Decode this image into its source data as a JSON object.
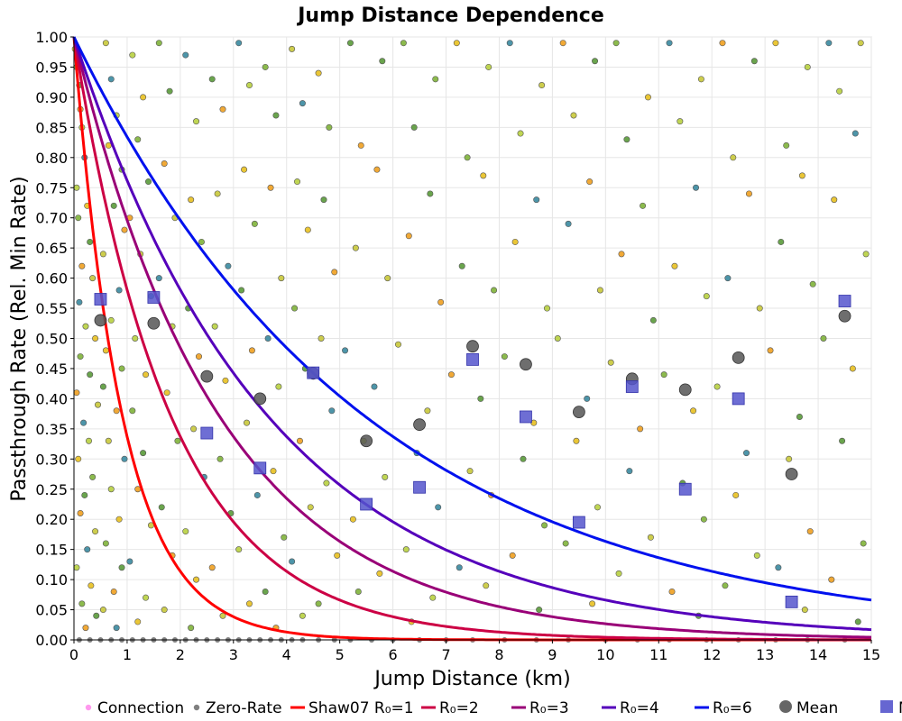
{
  "chart_data": {
    "type": "scatter",
    "title": "Jump Distance Dependence",
    "xlabel": "Jump Distance (km)",
    "ylabel": "Passthrough Rate (Rel. Min Rate)",
    "xlim": [
      0,
      15
    ],
    "ylim": [
      0,
      1
    ],
    "x_ticks": [
      "0",
      "1",
      "2",
      "3",
      "4",
      "5",
      "6",
      "7",
      "8",
      "9",
      "10",
      "11",
      "12",
      "13",
      "14",
      "15"
    ],
    "y_ticks": [
      "0.00",
      "0.05",
      "0.10",
      "0.15",
      "0.20",
      "0.25",
      "0.30",
      "0.35",
      "0.40",
      "0.45",
      "0.50",
      "0.55",
      "0.60",
      "0.65",
      "0.70",
      "0.75",
      "0.80",
      "0.85",
      "0.90",
      "0.95",
      "1.00"
    ],
    "grid": true,
    "legend": {
      "position": "bottom",
      "entries": [
        {
          "label": "Connection",
          "marker": "dot",
          "color": "#ff99ee"
        },
        {
          "label": "Zero-Rate",
          "marker": "dot",
          "color": "#808080"
        },
        {
          "label": "Shaw07 R₀=1",
          "marker": "line",
          "color": "#ff0000"
        },
        {
          "label": "R₀=2",
          "marker": "line",
          "color": "#cc0044"
        },
        {
          "label": "R₀=3",
          "marker": "line",
          "color": "#990077"
        },
        {
          "label": "R₀=4",
          "marker": "line",
          "color": "#5500bb"
        },
        {
          "label": "R₀=6",
          "marker": "line",
          "color": "#0011ee"
        },
        {
          "label": "Mean",
          "marker": "circle",
          "color": "#555555"
        },
        {
          "label": "Median",
          "marker": "square",
          "color": "#5555cc"
        }
      ]
    },
    "curves": [
      {
        "name": "Shaw07 R₀=1",
        "R0": 1,
        "color": "#ff0000"
      },
      {
        "name": "R₀=2",
        "R0": 2,
        "color": "#cc0044"
      },
      {
        "name": "R₀=3",
        "R0": 3,
        "color": "#990077"
      },
      {
        "name": "R₀=4",
        "R0": 4,
        "color": "#5500bb"
      },
      {
        "name": "R₀=6",
        "R0": 6,
        "color": "#0011ee"
      }
    ],
    "mean": {
      "x": [
        0.5,
        1.5,
        2.5,
        3.5,
        4.5,
        5.5,
        6.5,
        7.5,
        8.5,
        9.5,
        10.5,
        11.5,
        12.5,
        13.5,
        14.5
      ],
      "y": [
        0.53,
        0.525,
        0.437,
        0.4,
        0.442,
        0.33,
        0.357,
        0.487,
        0.457,
        0.378,
        0.433,
        0.415,
        0.468,
        0.275,
        0.537
      ]
    },
    "median": {
      "x": [
        0.5,
        1.5,
        2.5,
        3.5,
        4.5,
        5.5,
        6.5,
        7.5,
        8.5,
        9.5,
        10.5,
        11.5,
        12.5,
        13.5,
        14.5
      ],
      "y": [
        0.565,
        0.568,
        0.343,
        0.285,
        0.443,
        0.225,
        0.253,
        0.465,
        0.37,
        0.195,
        0.42,
        0.25,
        0.4,
        0.063,
        0.562
      ]
    },
    "connections_sample": [
      [
        0.02,
        0.98
      ],
      [
        0.05,
        0.95
      ],
      [
        0.1,
        0.92
      ],
      [
        0.12,
        0.88
      ],
      [
        0.15,
        0.85
      ],
      [
        0.2,
        0.8
      ],
      [
        0.05,
        0.75
      ],
      [
        0.25,
        0.72
      ],
      [
        0.08,
        0.7
      ],
      [
        0.3,
        0.66
      ],
      [
        0.15,
        0.62
      ],
      [
        0.35,
        0.6
      ],
      [
        0.1,
        0.56
      ],
      [
        0.22,
        0.52
      ],
      [
        0.4,
        0.5
      ],
      [
        0.12,
        0.47
      ],
      [
        0.3,
        0.44
      ],
      [
        0.05,
        0.41
      ],
      [
        0.45,
        0.39
      ],
      [
        0.18,
        0.36
      ],
      [
        0.28,
        0.33
      ],
      [
        0.08,
        0.3
      ],
      [
        0.35,
        0.27
      ],
      [
        0.2,
        0.24
      ],
      [
        0.12,
        0.21
      ],
      [
        0.4,
        0.18
      ],
      [
        0.25,
        0.15
      ],
      [
        0.05,
        0.12
      ],
      [
        0.32,
        0.09
      ],
      [
        0.15,
        0.06
      ],
      [
        0.42,
        0.04
      ],
      [
        0.22,
        0.02
      ],
      [
        0.6,
        0.99
      ],
      [
        0.7,
        0.93
      ],
      [
        0.8,
        0.87
      ],
      [
        0.65,
        0.82
      ],
      [
        0.9,
        0.78
      ],
      [
        0.75,
        0.72
      ],
      [
        0.95,
        0.68
      ],
      [
        0.55,
        0.64
      ],
      [
        0.85,
        0.58
      ],
      [
        0.7,
        0.53
      ],
      [
        0.6,
        0.48
      ],
      [
        0.9,
        0.45
      ],
      [
        0.55,
        0.42
      ],
      [
        0.8,
        0.38
      ],
      [
        0.65,
        0.33
      ],
      [
        0.95,
        0.3
      ],
      [
        0.7,
        0.25
      ],
      [
        0.85,
        0.2
      ],
      [
        0.6,
        0.16
      ],
      [
        0.9,
        0.12
      ],
      [
        0.75,
        0.08
      ],
      [
        0.55,
        0.05
      ],
      [
        0.8,
        0.02
      ],
      [
        1.1,
        0.97
      ],
      [
        1.3,
        0.9
      ],
      [
        1.2,
        0.83
      ],
      [
        1.4,
        0.76
      ],
      [
        1.05,
        0.7
      ],
      [
        1.25,
        0.64
      ],
      [
        1.45,
        0.57
      ],
      [
        1.15,
        0.5
      ],
      [
        1.35,
        0.44
      ],
      [
        1.1,
        0.38
      ],
      [
        1.3,
        0.31
      ],
      [
        1.2,
        0.25
      ],
      [
        1.45,
        0.19
      ],
      [
        1.05,
        0.13
      ],
      [
        1.35,
        0.07
      ],
      [
        1.2,
        0.03
      ],
      [
        1.6,
        0.99
      ],
      [
        1.8,
        0.91
      ],
      [
        1.7,
        0.79
      ],
      [
        1.9,
        0.7
      ],
      [
        1.6,
        0.6
      ],
      [
        1.85,
        0.52
      ],
      [
        1.75,
        0.41
      ],
      [
        1.95,
        0.33
      ],
      [
        1.65,
        0.22
      ],
      [
        1.85,
        0.14
      ],
      [
        1.7,
        0.05
      ],
      [
        2.1,
        0.97
      ],
      [
        2.3,
        0.86
      ],
      [
        2.2,
        0.73
      ],
      [
        2.4,
        0.66
      ],
      [
        2.15,
        0.55
      ],
      [
        2.35,
        0.47
      ],
      [
        2.25,
        0.35
      ],
      [
        2.45,
        0.27
      ],
      [
        2.1,
        0.18
      ],
      [
        2.3,
        0.1
      ],
      [
        2.2,
        0.02
      ],
      [
        2.6,
        0.93
      ],
      [
        2.8,
        0.88
      ],
      [
        2.7,
        0.74
      ],
      [
        2.9,
        0.62
      ],
      [
        2.65,
        0.52
      ],
      [
        2.85,
        0.43
      ],
      [
        2.75,
        0.3
      ],
      [
        2.95,
        0.21
      ],
      [
        2.6,
        0.12
      ],
      [
        2.8,
        0.04
      ],
      [
        3.1,
        0.99
      ],
      [
        3.3,
        0.92
      ],
      [
        3.2,
        0.78
      ],
      [
        3.4,
        0.69
      ],
      [
        3.15,
        0.58
      ],
      [
        3.35,
        0.48
      ],
      [
        3.25,
        0.36
      ],
      [
        3.45,
        0.24
      ],
      [
        3.1,
        0.15
      ],
      [
        3.3,
        0.06
      ],
      [
        3.6,
        0.95
      ],
      [
        3.8,
        0.87
      ],
      [
        3.7,
        0.75
      ],
      [
        3.9,
        0.6
      ],
      [
        3.65,
        0.5
      ],
      [
        3.85,
        0.42
      ],
      [
        3.75,
        0.28
      ],
      [
        3.95,
        0.17
      ],
      [
        3.6,
        0.08
      ],
      [
        3.8,
        0.02
      ],
      [
        4.1,
        0.98
      ],
      [
        4.3,
        0.89
      ],
      [
        4.2,
        0.76
      ],
      [
        4.4,
        0.68
      ],
      [
        4.15,
        0.55
      ],
      [
        4.35,
        0.45
      ],
      [
        4.25,
        0.33
      ],
      [
        4.45,
        0.22
      ],
      [
        4.1,
        0.13
      ],
      [
        4.3,
        0.04
      ],
      [
        4.6,
        0.94
      ],
      [
        4.8,
        0.85
      ],
      [
        4.7,
        0.73
      ],
      [
        4.9,
        0.61
      ],
      [
        4.65,
        0.5
      ],
      [
        4.85,
        0.38
      ],
      [
        4.75,
        0.26
      ],
      [
        4.95,
        0.14
      ],
      [
        4.6,
        0.06
      ],
      [
        5.2,
        0.99
      ],
      [
        5.4,
        0.82
      ],
      [
        5.3,
        0.65
      ],
      [
        5.1,
        0.48
      ],
      [
        5.45,
        0.33
      ],
      [
        5.25,
        0.2
      ],
      [
        5.35,
        0.08
      ],
      [
        5.8,
        0.96
      ],
      [
        5.7,
        0.78
      ],
      [
        5.9,
        0.6
      ],
      [
        5.65,
        0.42
      ],
      [
        5.85,
        0.27
      ],
      [
        5.75,
        0.11
      ],
      [
        6.2,
        0.99
      ],
      [
        6.4,
        0.85
      ],
      [
        6.3,
        0.67
      ],
      [
        6.1,
        0.49
      ],
      [
        6.45,
        0.31
      ],
      [
        6.25,
        0.15
      ],
      [
        6.35,
        0.03
      ],
      [
        6.8,
        0.93
      ],
      [
        6.7,
        0.74
      ],
      [
        6.9,
        0.56
      ],
      [
        6.65,
        0.38
      ],
      [
        6.85,
        0.22
      ],
      [
        6.75,
        0.07
      ],
      [
        7.2,
        0.99
      ],
      [
        7.4,
        0.8
      ],
      [
        7.3,
        0.62
      ],
      [
        7.1,
        0.44
      ],
      [
        7.45,
        0.28
      ],
      [
        7.25,
        0.12
      ],
      [
        7.8,
        0.95
      ],
      [
        7.7,
        0.77
      ],
      [
        7.9,
        0.58
      ],
      [
        7.65,
        0.4
      ],
      [
        7.85,
        0.24
      ],
      [
        7.75,
        0.09
      ],
      [
        8.2,
        0.99
      ],
      [
        8.4,
        0.84
      ],
      [
        8.3,
        0.66
      ],
      [
        8.1,
        0.47
      ],
      [
        8.45,
        0.3
      ],
      [
        8.25,
        0.14
      ],
      [
        8.8,
        0.92
      ],
      [
        8.7,
        0.73
      ],
      [
        8.9,
        0.55
      ],
      [
        8.65,
        0.36
      ],
      [
        8.85,
        0.19
      ],
      [
        8.75,
        0.05
      ],
      [
        9.2,
        0.99
      ],
      [
        9.4,
        0.87
      ],
      [
        9.3,
        0.69
      ],
      [
        9.1,
        0.5
      ],
      [
        9.45,
        0.33
      ],
      [
        9.25,
        0.16
      ],
      [
        9.8,
        0.96
      ],
      [
        9.7,
        0.76
      ],
      [
        9.9,
        0.58
      ],
      [
        9.65,
        0.4
      ],
      [
        9.85,
        0.22
      ],
      [
        9.75,
        0.06
      ],
      [
        10.2,
        0.99
      ],
      [
        10.4,
        0.83
      ],
      [
        10.3,
        0.64
      ],
      [
        10.1,
        0.46
      ],
      [
        10.45,
        0.28
      ],
      [
        10.25,
        0.11
      ],
      [
        10.8,
        0.9
      ],
      [
        10.7,
        0.72
      ],
      [
        10.9,
        0.53
      ],
      [
        10.65,
        0.35
      ],
      [
        10.85,
        0.17
      ],
      [
        11.2,
        0.99
      ],
      [
        11.4,
        0.86
      ],
      [
        11.3,
        0.62
      ],
      [
        11.1,
        0.44
      ],
      [
        11.45,
        0.26
      ],
      [
        11.25,
        0.08
      ],
      [
        11.8,
        0.93
      ],
      [
        11.7,
        0.75
      ],
      [
        11.9,
        0.57
      ],
      [
        11.65,
        0.38
      ],
      [
        11.85,
        0.2
      ],
      [
        11.75,
        0.04
      ],
      [
        12.2,
        0.99
      ],
      [
        12.4,
        0.8
      ],
      [
        12.3,
        0.6
      ],
      [
        12.1,
        0.42
      ],
      [
        12.45,
        0.24
      ],
      [
        12.25,
        0.09
      ],
      [
        12.8,
        0.96
      ],
      [
        12.7,
        0.74
      ],
      [
        12.9,
        0.55
      ],
      [
        12.65,
        0.31
      ],
      [
        12.85,
        0.14
      ],
      [
        13.2,
        0.99
      ],
      [
        13.4,
        0.82
      ],
      [
        13.3,
        0.66
      ],
      [
        13.1,
        0.48
      ],
      [
        13.45,
        0.3
      ],
      [
        13.25,
        0.12
      ],
      [
        13.8,
        0.95
      ],
      [
        13.7,
        0.77
      ],
      [
        13.9,
        0.59
      ],
      [
        13.65,
        0.37
      ],
      [
        13.85,
        0.18
      ],
      [
        13.75,
        0.05
      ],
      [
        14.2,
        0.99
      ],
      [
        14.4,
        0.91
      ],
      [
        14.3,
        0.73
      ],
      [
        14.1,
        0.5
      ],
      [
        14.45,
        0.33
      ],
      [
        14.25,
        0.1
      ],
      [
        14.8,
        0.99
      ],
      [
        14.7,
        0.84
      ],
      [
        14.9,
        0.64
      ],
      [
        14.65,
        0.45
      ],
      [
        14.85,
        0.16
      ],
      [
        14.75,
        0.03
      ]
    ],
    "zero_rate_sample_x": [
      0.1,
      0.3,
      0.5,
      0.7,
      0.9,
      1.1,
      1.3,
      1.5,
      1.7,
      1.9,
      2.1,
      2.3,
      2.5,
      2.7,
      2.9,
      3.1,
      3.3,
      3.5,
      3.7,
      3.9,
      4.1,
      4.3,
      4.6,
      4.9,
      5.2,
      5.6,
      6.0,
      6.5,
      7.0,
      7.5,
      8.1,
      8.7,
      9.3,
      10.0,
      10.6,
      11.2,
      11.9,
      12.5,
      13.2,
      13.8,
      14.5
    ]
  }
}
